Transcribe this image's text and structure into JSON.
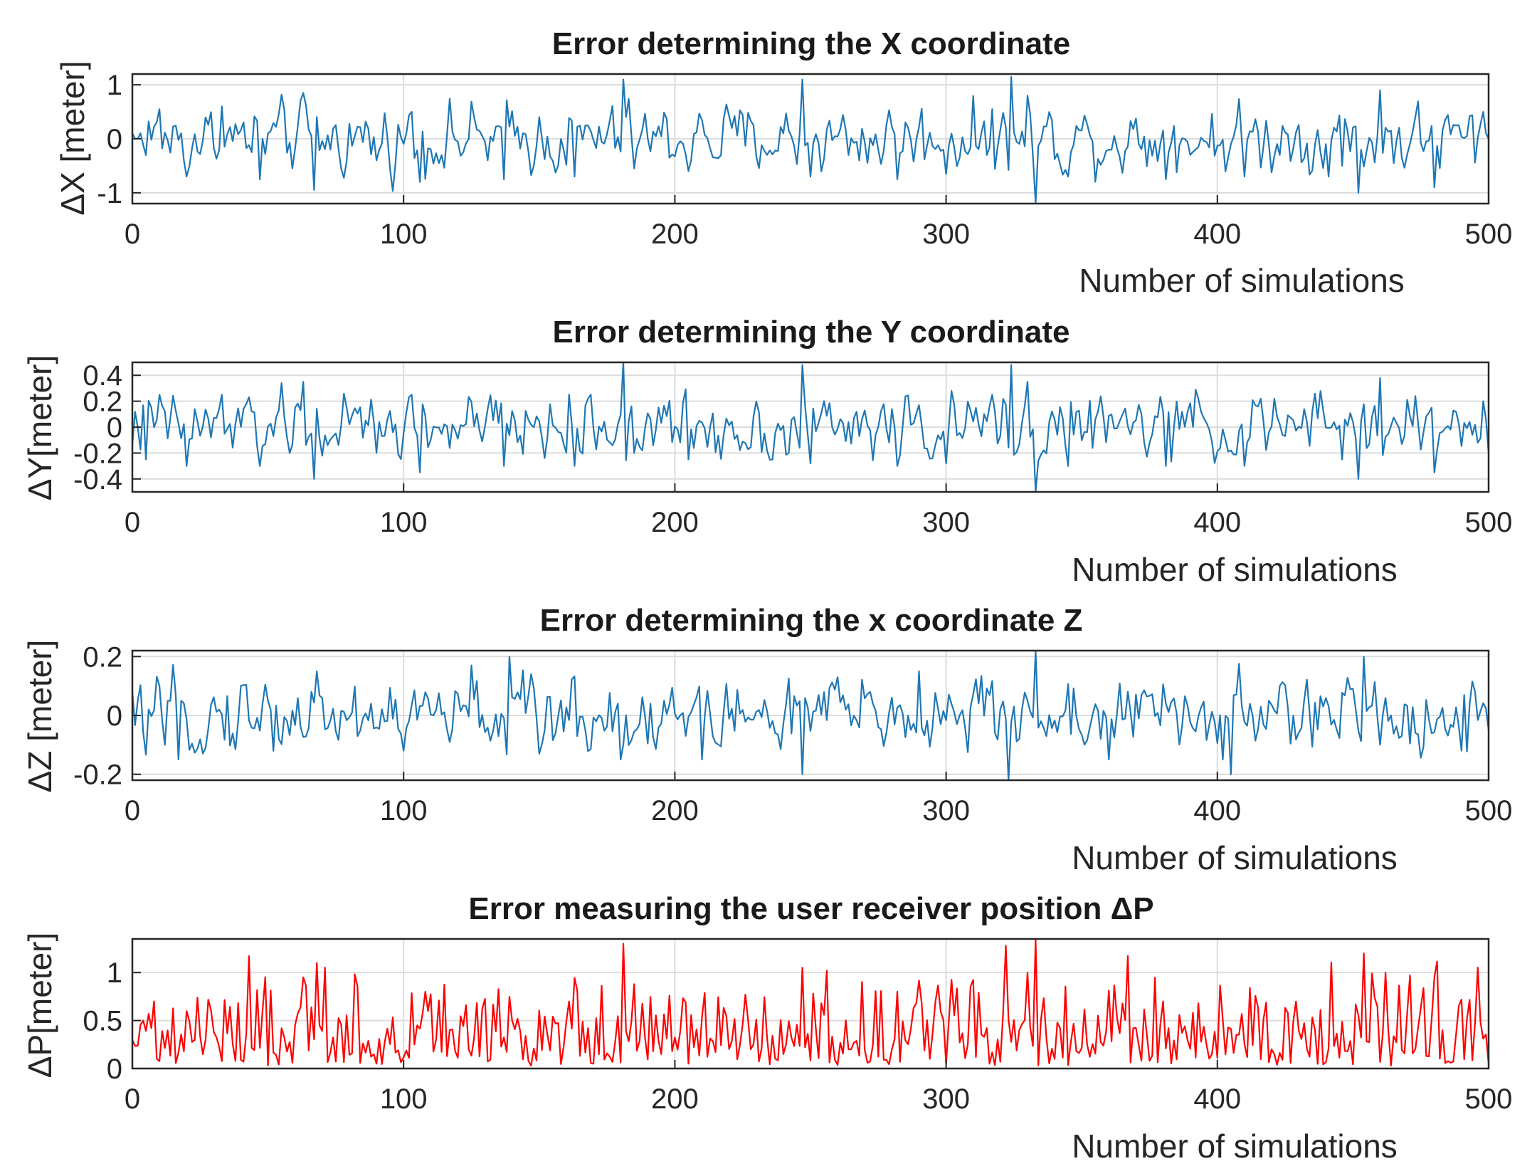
{
  "chart_data": [
    {
      "type": "line",
      "title": "Error determining the X coordinate",
      "xlabel": "Number of simulations",
      "ylabel": "ΔX [meter]",
      "xlim": [
        0,
        500
      ],
      "ylim": [
        -1.2,
        1.2
      ],
      "xticks": [
        0,
        100,
        200,
        300,
        400,
        500
      ],
      "xtick_labels": [
        "0",
        "100",
        "200",
        "300",
        "400",
        "500"
      ],
      "yticks": [
        1,
        0,
        -1
      ],
      "ytick_labels": [
        "1",
        "0",
        "-1"
      ],
      "grid": true,
      "color": "#1f77b4",
      "series": [
        {
          "name": "ΔX",
          "spikes": [
            [
              2,
              0
            ],
            [
              5,
              -0.3
            ],
            [
              10,
              0.55
            ],
            [
              20,
              -0.7
            ],
            [
              33,
              0.6
            ],
            [
              47,
              -0.75
            ],
            [
              63,
              0.85
            ],
            [
              67,
              -0.95
            ],
            [
              90,
              -0.4
            ],
            [
              103,
              0.5
            ],
            [
              106,
              -0.8
            ],
            [
              137,
              -0.75
            ],
            [
              163,
              -0.7
            ],
            [
              181,
              1.1
            ],
            [
              185,
              -0.55
            ],
            [
              205,
              -0.6
            ],
            [
              247,
              1.1
            ],
            [
              250,
              -0.7
            ],
            [
              282,
              -0.75
            ],
            [
              300,
              -0.65
            ],
            [
              317,
              0.55
            ],
            [
              324,
              1.15
            ],
            [
              330,
              0.8
            ],
            [
              333,
              -1.2
            ],
            [
              345,
              -0.7
            ],
            [
              381,
              -0.75
            ],
            [
              410,
              -0.7
            ],
            [
              446,
              -0.5
            ],
            [
              452,
              -1.0
            ],
            [
              460,
              0.9
            ],
            [
              480,
              -0.9
            ],
            [
              498,
              0.5
            ],
            [
              500,
              0
            ]
          ],
          "amplitude": 0.45,
          "n_points": 500
        }
      ]
    },
    {
      "type": "line",
      "title": "Error determining the Y coordinate",
      "xlabel": "Number of simulations",
      "ylabel": "ΔY[meter]",
      "xlim": [
        0,
        500
      ],
      "ylim": [
        -0.5,
        0.5
      ],
      "xticks": [
        0,
        100,
        200,
        300,
        400,
        500
      ],
      "xtick_labels": [
        "0",
        "100",
        "200",
        "300",
        "400",
        "500"
      ],
      "yticks": [
        0.4,
        0.2,
        0,
        -0.2,
        -0.4
      ],
      "ytick_labels": [
        "0.4",
        "0.2",
        "0",
        "-0.2",
        "-0.4"
      ],
      "grid": true,
      "color": "#1f77b4",
      "series": [
        {
          "name": "ΔY",
          "spikes": [
            [
              2,
              0
            ],
            [
              5,
              -0.25
            ],
            [
              10,
              0.25
            ],
            [
              20,
              -0.3
            ],
            [
              33,
              0.25
            ],
            [
              47,
              -0.3
            ],
            [
              63,
              0.35
            ],
            [
              67,
              -0.4
            ],
            [
              90,
              -0.2
            ],
            [
              103,
              0.25
            ],
            [
              106,
              -0.35
            ],
            [
              137,
              -0.3
            ],
            [
              163,
              -0.3
            ],
            [
              181,
              0.5
            ],
            [
              185,
              -0.2
            ],
            [
              205,
              -0.25
            ],
            [
              247,
              0.48
            ],
            [
              250,
              -0.28
            ],
            [
              282,
              -0.3
            ],
            [
              300,
              -0.28
            ],
            [
              317,
              0.25
            ],
            [
              324,
              0.48
            ],
            [
              330,
              0.35
            ],
            [
              333,
              -0.5
            ],
            [
              345,
              -0.3
            ],
            [
              381,
              -0.3
            ],
            [
              410,
              -0.3
            ],
            [
              446,
              -0.25
            ],
            [
              452,
              -0.4
            ],
            [
              460,
              0.38
            ],
            [
              480,
              -0.35
            ],
            [
              498,
              0.2
            ],
            [
              500,
              -0.2
            ]
          ],
          "amplitude": 0.18,
          "n_points": 500
        }
      ]
    },
    {
      "type": "line",
      "title": "Error determining the x coordinate Z",
      "xlabel": "Number of simulations",
      "ylabel": "ΔZ [meter]",
      "xlim": [
        0,
        500
      ],
      "ylim": [
        -0.22,
        0.22
      ],
      "xticks": [
        0,
        100,
        200,
        300,
        400,
        500
      ],
      "xtick_labels": [
        "0",
        "100",
        "200",
        "300",
        "400",
        "500"
      ],
      "yticks": [
        0.2,
        0,
        -0.2
      ],
      "ytick_labels": [
        "0.2",
        "0",
        "-0.2"
      ],
      "grid": true,
      "color": "#1f77b4",
      "series": [
        {
          "name": "ΔZ",
          "spikes": [
            [
              2,
              0.05
            ],
            [
              6,
              0.02
            ],
            [
              12,
              -0.1
            ],
            [
              17,
              -0.15
            ],
            [
              40,
              0.1
            ],
            [
              68,
              0.15
            ],
            [
              100,
              -0.12
            ],
            [
              125,
              0.17
            ],
            [
              139,
              0.2
            ],
            [
              150,
              -0.13
            ],
            [
              180,
              -0.15
            ],
            [
              210,
              -0.15
            ],
            [
              247,
              -0.2
            ],
            [
              260,
              0.13
            ],
            [
              290,
              0.15
            ],
            [
              323,
              -0.22
            ],
            [
              333,
              0.22
            ],
            [
              360,
              -0.15
            ],
            [
              402,
              -0.15
            ],
            [
              405,
              -0.2
            ],
            [
              423,
              0.1
            ],
            [
              454,
              0.2
            ],
            [
              460,
              -0.1
            ],
            [
              490,
              -0.12
            ],
            [
              500,
              -0.05
            ]
          ],
          "amplitude": 0.09,
          "n_points": 500
        }
      ]
    },
    {
      "type": "line",
      "title": "Error measuring the user receiver position ΔP",
      "xlabel": "Number of simulations",
      "ylabel": "ΔP[meter]",
      "xlim": [
        0,
        500
      ],
      "ylim": [
        0,
        1.35
      ],
      "xticks": [
        0,
        100,
        200,
        300,
        400,
        500
      ],
      "xtick_labels": [
        "0",
        "100",
        "200",
        "300",
        "400",
        "500"
      ],
      "yticks": [
        1,
        0.5,
        0
      ],
      "ytick_labels": [
        "1",
        "0.5",
        "0"
      ],
      "grid": true,
      "color": "#ff0000",
      "series": [
        {
          "name": "ΔP",
          "spikes": [
            [
              0,
              0.3
            ],
            [
              8,
              0.7
            ],
            [
              63,
              0.95
            ],
            [
              68,
              1.1
            ],
            [
              90,
              0.05
            ],
            [
              108,
              0.8
            ],
            [
              140,
              0.5
            ],
            [
              170,
              0.05
            ],
            [
              181,
              1.3
            ],
            [
              205,
              0.05
            ],
            [
              247,
              1.05
            ],
            [
              282,
              0.8
            ],
            [
              300,
              0.05
            ],
            [
              322,
              1.28
            ],
            [
              330,
              1.0
            ],
            [
              333,
              1.35
            ],
            [
              340,
              0.1
            ],
            [
              380,
              0.7
            ],
            [
              420,
              0.2
            ],
            [
              454,
              1.2
            ],
            [
              462,
              1.0
            ],
            [
              480,
              0.95
            ],
            [
              500,
              0.05
            ]
          ],
          "amplitude": 0.42,
          "n_points": 500
        }
      ]
    }
  ]
}
